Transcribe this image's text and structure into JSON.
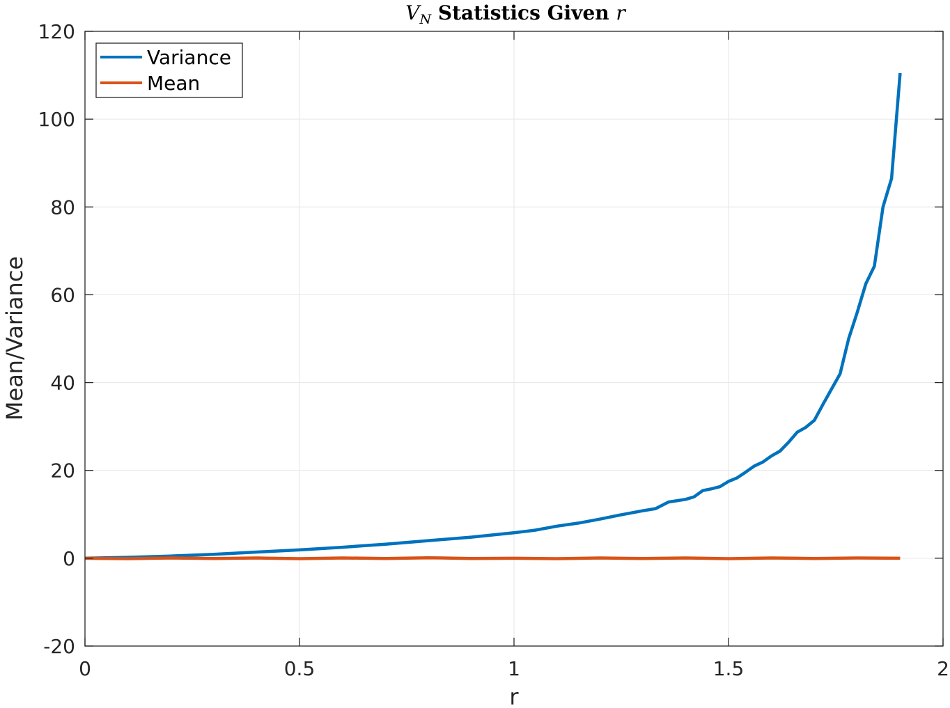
{
  "chart_data": {
    "type": "line",
    "title": {
      "var": "V",
      "sub": "N",
      "text": " Statistics Given ",
      "var2": "r"
    },
    "xlabel": "r",
    "ylabel": "Mean/Variance",
    "xlim": [
      0,
      2
    ],
    "ylim": [
      -20,
      120
    ],
    "xticks": [
      0,
      0.5,
      1,
      1.5,
      2
    ],
    "xtick_labels": [
      "0",
      "0.5",
      "1",
      "1.5",
      "2"
    ],
    "yticks": [
      -20,
      0,
      20,
      40,
      60,
      80,
      100,
      120
    ],
    "ytick_labels": [
      "-20",
      "0",
      "20",
      "40",
      "60",
      "80",
      "100",
      "120"
    ],
    "grid": true,
    "legend_position": "top-left",
    "colors": {
      "variance": "#0072BD",
      "mean": "#D95319",
      "grid": "#e6e6e6",
      "axis": "#262626"
    },
    "series": [
      {
        "name": "Variance",
        "color": "#0072BD",
        "x": [
          0,
          0.1,
          0.2,
          0.3,
          0.4,
          0.5,
          0.6,
          0.7,
          0.8,
          0.9,
          1.0,
          1.05,
          1.1,
          1.15,
          1.2,
          1.25,
          1.3,
          1.33,
          1.36,
          1.4,
          1.42,
          1.44,
          1.46,
          1.48,
          1.5,
          1.52,
          1.54,
          1.56,
          1.58,
          1.6,
          1.62,
          1.64,
          1.66,
          1.68,
          1.7,
          1.72,
          1.74,
          1.76,
          1.78,
          1.8,
          1.82,
          1.84,
          1.86,
          1.88,
          1.9
        ],
        "values": [
          0,
          0.2,
          0.5,
          0.9,
          1.4,
          1.9,
          2.5,
          3.2,
          4.0,
          4.8,
          5.8,
          6.4,
          7.3,
          8.0,
          8.9,
          9.9,
          10.8,
          11.3,
          12.8,
          13.4,
          14.0,
          15.4,
          15.8,
          16.3,
          17.5,
          18.3,
          19.6,
          21.0,
          21.9,
          23.3,
          24.4,
          26.4,
          28.7,
          29.8,
          31.4,
          35.0,
          38.5,
          42.0,
          50.0,
          56.0,
          62.5,
          66.5,
          80.0,
          86.5,
          110.5
        ]
      },
      {
        "name": "Mean",
        "color": "#D95319",
        "x": [
          0,
          0.1,
          0.2,
          0.3,
          0.4,
          0.5,
          0.6,
          0.7,
          0.8,
          0.9,
          1.0,
          1.1,
          1.2,
          1.3,
          1.4,
          1.5,
          1.6,
          1.7,
          1.8,
          1.9
        ],
        "values": [
          0,
          -0.1,
          0.05,
          -0.05,
          0.05,
          -0.1,
          0.05,
          -0.05,
          0.1,
          -0.05,
          0,
          -0.1,
          0.05,
          -0.05,
          0.05,
          -0.1,
          0.05,
          -0.05,
          0.05,
          0
        ]
      }
    ]
  }
}
